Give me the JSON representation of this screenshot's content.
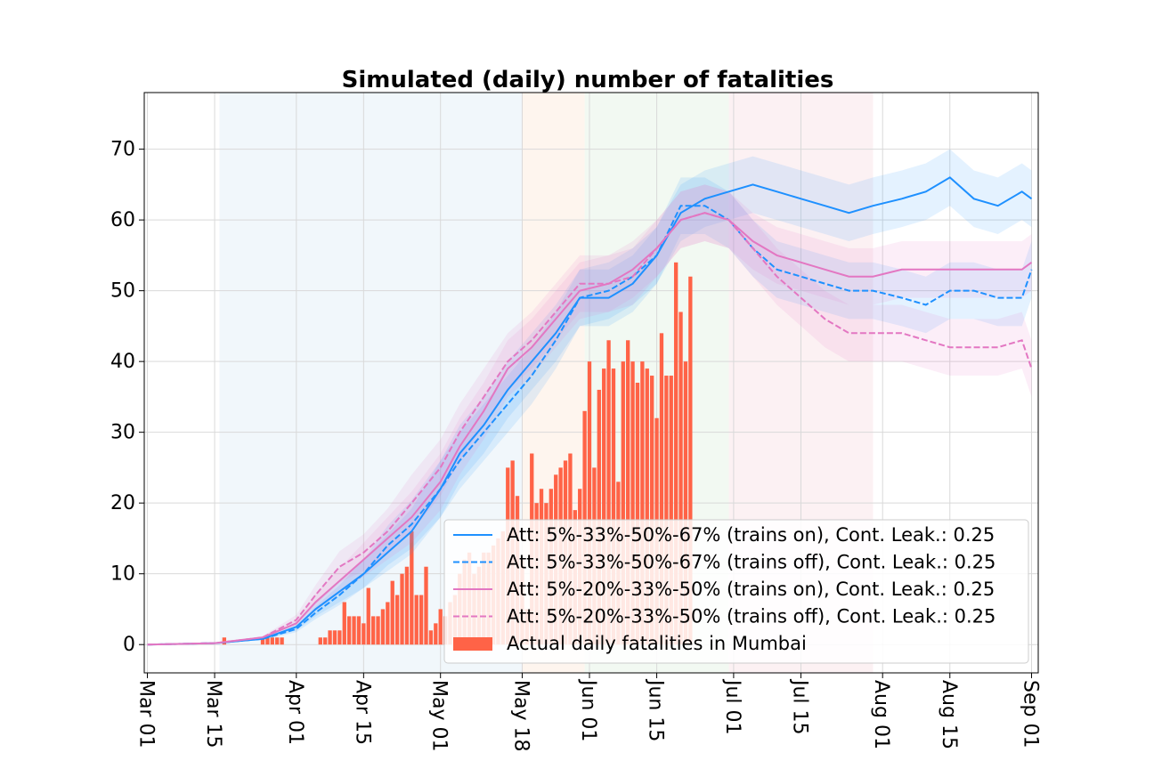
{
  "chart_data": {
    "type": "line",
    "title": "Simulated (daily) number of fatalities",
    "xlabel": "",
    "ylabel": "",
    "x_start": "2020-03-01",
    "x_end": "2020-09-01",
    "ylim": [
      -4,
      78
    ],
    "grid": true,
    "legend_position": "lower-right",
    "x_ticks": [
      {
        "date": "2020-03-01",
        "label": "Mar 01"
      },
      {
        "date": "2020-03-15",
        "label": "Mar 15"
      },
      {
        "date": "2020-04-01",
        "label": "Apr 01"
      },
      {
        "date": "2020-04-15",
        "label": "Apr 15"
      },
      {
        "date": "2020-05-01",
        "label": "May 01"
      },
      {
        "date": "2020-05-18",
        "label": "May 18"
      },
      {
        "date": "2020-06-01",
        "label": "Jun 01"
      },
      {
        "date": "2020-06-15",
        "label": "Jun 15"
      },
      {
        "date": "2020-07-01",
        "label": "Jul 01"
      },
      {
        "date": "2020-07-15",
        "label": "Jul 15"
      },
      {
        "date": "2020-08-01",
        "label": "Aug 01"
      },
      {
        "date": "2020-08-15",
        "label": "Aug 15"
      },
      {
        "date": "2020-09-01",
        "label": "Sep 01"
      }
    ],
    "y_ticks": [
      0,
      10,
      20,
      30,
      40,
      50,
      60,
      70
    ],
    "shaded_periods": [
      {
        "start": "2020-03-16",
        "end": "2020-05-18",
        "color": "#e1edf6"
      },
      {
        "start": "2020-05-18",
        "end": "2020-05-31",
        "color": "#fde8d9"
      },
      {
        "start": "2020-05-31",
        "end": "2020-06-30",
        "color": "#e3f2e3"
      },
      {
        "start": "2020-06-30",
        "end": "2020-07-30",
        "color": "#f8e1e4"
      }
    ],
    "series": [
      {
        "name": "Att: 5%-33%-50%-67% (trains on), Cont. Leak.: 0.25",
        "color": "#1e90ff",
        "dash": "solid",
        "points": [
          [
            "2020-03-01",
            0
          ],
          [
            "2020-03-15",
            0.2
          ],
          [
            "2020-03-25",
            0.8
          ],
          [
            "2020-04-01",
            2.5
          ],
          [
            "2020-04-05",
            5
          ],
          [
            "2020-04-10",
            7.5
          ],
          [
            "2020-04-15",
            10
          ],
          [
            "2020-04-20",
            13
          ],
          [
            "2020-04-25",
            16
          ],
          [
            "2020-05-01",
            22
          ],
          [
            "2020-05-05",
            27
          ],
          [
            "2020-05-10",
            31
          ],
          [
            "2020-05-15",
            36
          ],
          [
            "2020-05-20",
            40
          ],
          [
            "2020-05-25",
            44
          ],
          [
            "2020-05-30",
            49
          ],
          [
            "2020-06-05",
            49
          ],
          [
            "2020-06-10",
            51
          ],
          [
            "2020-06-15",
            55
          ],
          [
            "2020-06-20",
            61
          ],
          [
            "2020-06-25",
            63
          ],
          [
            "2020-06-30",
            64
          ],
          [
            "2020-07-05",
            65
          ],
          [
            "2020-07-10",
            64
          ],
          [
            "2020-07-15",
            63
          ],
          [
            "2020-07-20",
            62
          ],
          [
            "2020-07-25",
            61
          ],
          [
            "2020-07-30",
            62
          ],
          [
            "2020-08-05",
            63
          ],
          [
            "2020-08-10",
            64
          ],
          [
            "2020-08-15",
            66
          ],
          [
            "2020-08-20",
            63
          ],
          [
            "2020-08-25",
            62
          ],
          [
            "2020-08-30",
            64
          ],
          [
            "2020-09-01",
            63
          ]
        ],
        "band": 4
      },
      {
        "name": "Att: 5%-33%-50%-67% (trains off), Cont. Leak.: 0.25",
        "color": "#1e90ff",
        "dash": "dashed",
        "points": [
          [
            "2020-03-01",
            0
          ],
          [
            "2020-03-15",
            0.2
          ],
          [
            "2020-03-25",
            0.8
          ],
          [
            "2020-04-01",
            2.2
          ],
          [
            "2020-04-05",
            4.5
          ],
          [
            "2020-04-10",
            7
          ],
          [
            "2020-04-15",
            10
          ],
          [
            "2020-04-20",
            14
          ],
          [
            "2020-04-25",
            17
          ],
          [
            "2020-05-01",
            22
          ],
          [
            "2020-05-05",
            26
          ],
          [
            "2020-05-10",
            30
          ],
          [
            "2020-05-15",
            34
          ],
          [
            "2020-05-20",
            38
          ],
          [
            "2020-05-25",
            43
          ],
          [
            "2020-05-30",
            49
          ],
          [
            "2020-06-05",
            50
          ],
          [
            "2020-06-10",
            52
          ],
          [
            "2020-06-15",
            55
          ],
          [
            "2020-06-20",
            62
          ],
          [
            "2020-06-25",
            62
          ],
          [
            "2020-06-30",
            60
          ],
          [
            "2020-07-05",
            56
          ],
          [
            "2020-07-10",
            53
          ],
          [
            "2020-07-15",
            52
          ],
          [
            "2020-07-20",
            51
          ],
          [
            "2020-07-25",
            50
          ],
          [
            "2020-07-30",
            50
          ],
          [
            "2020-08-05",
            49
          ],
          [
            "2020-08-10",
            48
          ],
          [
            "2020-08-15",
            50
          ],
          [
            "2020-08-20",
            50
          ],
          [
            "2020-08-25",
            49
          ],
          [
            "2020-08-30",
            49
          ],
          [
            "2020-09-01",
            53
          ]
        ],
        "band": 4
      },
      {
        "name": "Att: 5%-20%-33%-50% (trains on), Cont. Leak.: 0.25",
        "color": "#e377c2",
        "dash": "solid",
        "points": [
          [
            "2020-03-01",
            0
          ],
          [
            "2020-03-15",
            0.2
          ],
          [
            "2020-03-25",
            1
          ],
          [
            "2020-04-01",
            3
          ],
          [
            "2020-04-05",
            6
          ],
          [
            "2020-04-10",
            9
          ],
          [
            "2020-04-15",
            12
          ],
          [
            "2020-04-20",
            15
          ],
          [
            "2020-04-25",
            18
          ],
          [
            "2020-05-01",
            23
          ],
          [
            "2020-05-05",
            28
          ],
          [
            "2020-05-10",
            33
          ],
          [
            "2020-05-15",
            39
          ],
          [
            "2020-05-20",
            42
          ],
          [
            "2020-05-25",
            46
          ],
          [
            "2020-05-30",
            50
          ],
          [
            "2020-06-05",
            51
          ],
          [
            "2020-06-10",
            53
          ],
          [
            "2020-06-15",
            56
          ],
          [
            "2020-06-20",
            60
          ],
          [
            "2020-06-25",
            61
          ],
          [
            "2020-06-30",
            60
          ],
          [
            "2020-07-05",
            57
          ],
          [
            "2020-07-10",
            55
          ],
          [
            "2020-07-15",
            54
          ],
          [
            "2020-07-20",
            53
          ],
          [
            "2020-07-25",
            52
          ],
          [
            "2020-07-30",
            52
          ],
          [
            "2020-08-05",
            53
          ],
          [
            "2020-08-10",
            53
          ],
          [
            "2020-08-15",
            53
          ],
          [
            "2020-08-20",
            53
          ],
          [
            "2020-08-25",
            53
          ],
          [
            "2020-08-30",
            53
          ],
          [
            "2020-09-01",
            54
          ]
        ],
        "band": 4
      },
      {
        "name": "Att: 5%-20%-33%-50% (trains off), Cont. Leak.: 0.25",
        "color": "#e377c2",
        "dash": "dashed",
        "points": [
          [
            "2020-03-01",
            0
          ],
          [
            "2020-03-15",
            0.2
          ],
          [
            "2020-03-25",
            1
          ],
          [
            "2020-04-01",
            3.5
          ],
          [
            "2020-04-05",
            7
          ],
          [
            "2020-04-10",
            11
          ],
          [
            "2020-04-15",
            13
          ],
          [
            "2020-04-20",
            16
          ],
          [
            "2020-04-25",
            20
          ],
          [
            "2020-05-01",
            25
          ],
          [
            "2020-05-05",
            30
          ],
          [
            "2020-05-10",
            35
          ],
          [
            "2020-05-15",
            40
          ],
          [
            "2020-05-20",
            43
          ],
          [
            "2020-05-25",
            47
          ],
          [
            "2020-05-30",
            51
          ],
          [
            "2020-06-05",
            51
          ],
          [
            "2020-06-10",
            52
          ],
          [
            "2020-06-15",
            56
          ],
          [
            "2020-06-20",
            60
          ],
          [
            "2020-06-25",
            61
          ],
          [
            "2020-06-30",
            60
          ],
          [
            "2020-07-05",
            56
          ],
          [
            "2020-07-10",
            52
          ],
          [
            "2020-07-15",
            49
          ],
          [
            "2020-07-20",
            46
          ],
          [
            "2020-07-25",
            44
          ],
          [
            "2020-07-30",
            44
          ],
          [
            "2020-08-05",
            44
          ],
          [
            "2020-08-10",
            43
          ],
          [
            "2020-08-15",
            42
          ],
          [
            "2020-08-20",
            42
          ],
          [
            "2020-08-25",
            42
          ],
          [
            "2020-08-30",
            43
          ],
          [
            "2020-09-01",
            39
          ]
        ],
        "band": 4
      }
    ],
    "bars": {
      "name": "Actual daily fatalities in Mumbai",
      "color": "#ff6347",
      "start": "2020-03-01",
      "values": [
        0,
        0,
        0,
        0,
        0,
        0,
        0,
        0,
        0,
        0,
        0,
        0,
        0,
        0,
        0,
        0,
        1,
        0,
        0,
        0,
        0,
        0,
        0,
        0,
        1,
        1,
        1,
        1,
        1,
        0,
        0,
        0,
        0,
        0,
        0,
        0,
        1,
        1,
        2,
        2,
        2,
        6,
        4,
        4,
        4,
        3,
        8,
        4,
        4,
        5,
        6,
        9,
        7,
        10,
        11,
        16,
        7,
        7,
        11,
        2,
        3,
        5,
        4,
        6,
        7,
        10,
        12,
        13,
        10,
        11,
        13,
        13,
        14,
        15,
        16,
        25,
        26,
        21,
        12,
        5,
        27,
        20,
        22,
        20,
        22,
        24,
        25,
        26,
        27,
        19,
        22,
        33,
        40,
        25,
        36,
        39,
        43,
        39,
        23,
        40,
        43,
        40,
        37,
        40,
        39,
        38,
        32,
        44,
        38,
        38,
        54,
        47,
        40,
        52
      ]
    }
  }
}
